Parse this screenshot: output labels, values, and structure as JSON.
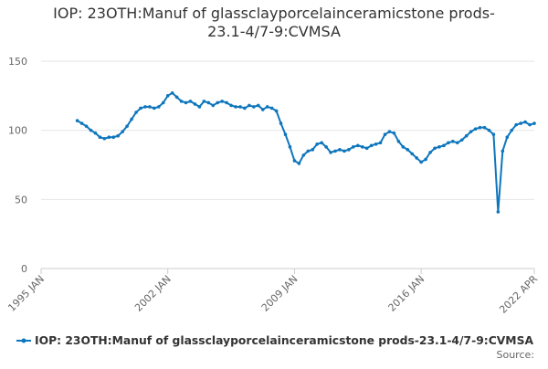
{
  "chart_data": {
    "type": "line",
    "title": "IOP: 23OTH:Manuf of glassclayporcelainceramicstone prods-23.1-4/7-9:CVMSA",
    "source": "Source:",
    "x": [
      "1997-01",
      "1997-04",
      "1997-07",
      "1997-10",
      "1998-01",
      "1998-04",
      "1998-07",
      "1998-10",
      "1999-01",
      "1999-04",
      "1999-07",
      "1999-10",
      "2000-01",
      "2000-04",
      "2000-07",
      "2000-10",
      "2001-01",
      "2001-04",
      "2001-07",
      "2001-10",
      "2002-01",
      "2002-04",
      "2002-07",
      "2002-10",
      "2003-01",
      "2003-04",
      "2003-07",
      "2003-10",
      "2004-01",
      "2004-04",
      "2004-07",
      "2004-10",
      "2005-01",
      "2005-04",
      "2005-07",
      "2005-10",
      "2006-01",
      "2006-04",
      "2006-07",
      "2006-10",
      "2007-01",
      "2007-04",
      "2007-07",
      "2007-10",
      "2008-01",
      "2008-04",
      "2008-07",
      "2008-10",
      "2009-01",
      "2009-04",
      "2009-07",
      "2009-10",
      "2010-01",
      "2010-04",
      "2010-07",
      "2010-10",
      "2011-01",
      "2011-04",
      "2011-07",
      "2011-10",
      "2012-01",
      "2012-04",
      "2012-07",
      "2012-10",
      "2013-01",
      "2013-04",
      "2013-07",
      "2013-10",
      "2014-01",
      "2014-04",
      "2014-07",
      "2014-10",
      "2015-01",
      "2015-04",
      "2015-07",
      "2015-10",
      "2016-01",
      "2016-04",
      "2016-07",
      "2016-10",
      "2017-01",
      "2017-04",
      "2017-07",
      "2017-10",
      "2018-01",
      "2018-04",
      "2018-07",
      "2018-10",
      "2019-01",
      "2019-04",
      "2019-07",
      "2019-10",
      "2020-01",
      "2020-04",
      "2020-07",
      "2020-10",
      "2021-01",
      "2021-04",
      "2021-07",
      "2021-10",
      "2022-01",
      "2022-04"
    ],
    "series": [
      {
        "name": "IOP: 23OTH:Manuf of glassclayporcelainceramicstone prods-23.1-4/7-9:CVMSA",
        "color": "#0e76bc",
        "values": [
          107,
          105,
          103,
          100,
          98,
          95,
          94,
          95,
          95,
          96,
          99,
          103,
          108,
          113,
          116,
          117,
          117,
          116,
          117,
          120,
          125,
          127,
          124,
          121,
          120,
          121,
          119,
          117,
          121,
          120,
          118,
          120,
          121,
          120,
          118,
          117,
          117,
          116,
          118,
          117,
          118,
          115,
          117,
          116,
          114,
          105,
          97,
          88,
          78,
          76,
          82,
          85,
          86,
          90,
          91,
          88,
          84,
          85,
          86,
          85,
          86,
          88,
          89,
          88,
          87,
          89,
          90,
          91,
          97,
          99,
          98,
          92,
          88,
          86,
          83,
          80,
          77,
          79,
          84,
          87,
          88,
          89,
          91,
          92,
          91,
          93,
          96,
          99,
          101,
          102,
          102,
          100,
          97,
          41,
          85,
          95,
          100,
          104,
          105,
          106,
          104,
          105
        ]
      }
    ],
    "xlim": [
      "1995-01",
      "2022-04"
    ],
    "xticks": [
      {
        "value": "1995-01",
        "label": "1995 JAN"
      },
      {
        "value": "2002-01",
        "label": "2002 JAN"
      },
      {
        "value": "2009-01",
        "label": "2009 JAN"
      },
      {
        "value": "2016-01",
        "label": "2016 JAN"
      },
      {
        "value": "2022-04",
        "label": "2022 APR"
      }
    ],
    "ylim": [
      0,
      150
    ],
    "yticks": [
      0,
      50,
      100,
      150
    ],
    "grid": true
  }
}
